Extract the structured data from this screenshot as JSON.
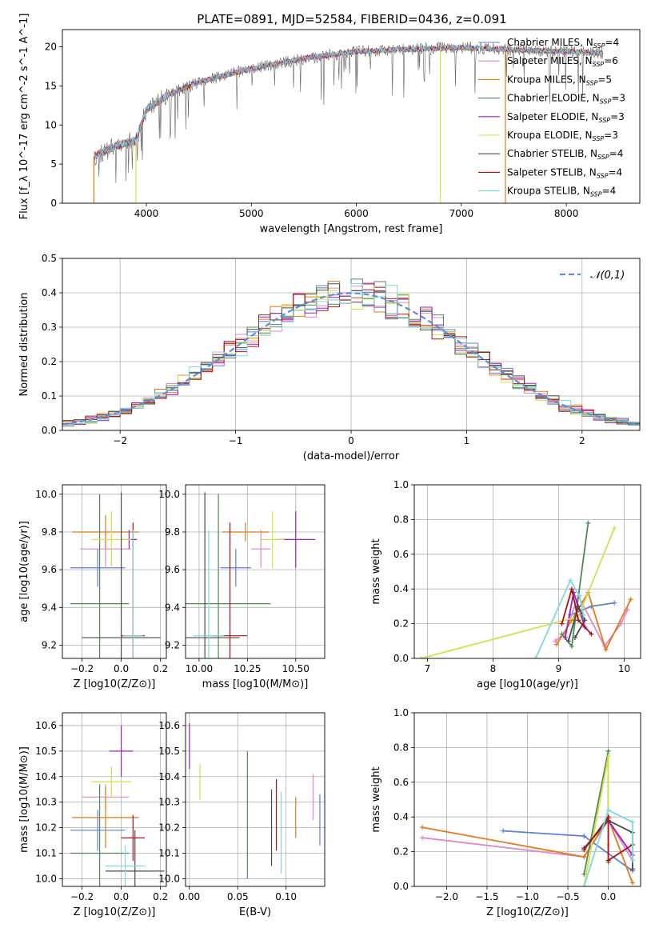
{
  "title": "PLATE=0891, MJD=52584, FIBERID=0436, z=0.091",
  "legend_labels": [
    {
      "pre": "Chabrier MILES, N",
      "sub": "SSP",
      "post": "=4",
      "color": "#5b7fdb"
    },
    {
      "pre": "Salpeter MILES, N",
      "sub": "SSP",
      "post": "=6",
      "color": "#e387c8"
    },
    {
      "pre": "Kroupa MILES, N",
      "sub": "SSP",
      "post": "=5",
      "color": "#e07b1a"
    },
    {
      "pre": "Chabrier ELODIE, N",
      "sub": "SSP",
      "post": "=3",
      "color": "#4f8a55"
    },
    {
      "pre": "Salpeter ELODIE, N",
      "sub": "SSP",
      "post": "=3",
      "color": "#9b1fbf"
    },
    {
      "pre": "Kroupa ELODIE, N",
      "sub": "SSP",
      "post": "=3",
      "color": "#d4e04a"
    },
    {
      "pre": "Chabrier STELIB, N",
      "sub": "SSP",
      "post": "=4",
      "color": "#4a4a4a"
    },
    {
      "pre": "Salpeter STELIB, N",
      "sub": "SSP",
      "post": "=4",
      "color": "#b01010"
    },
    {
      "pre": "Kroupa STELIB, N",
      "sub": "SSP",
      "post": "=4",
      "color": "#7ed9dc"
    }
  ],
  "chart_data": [
    {
      "type": "line",
      "id": "spectrum",
      "xlabel": "wavelength [Angstrom, rest frame]",
      "ylabel": "Flux [f_λ 10^-17 erg cm^-2 s^-1 A^-1]",
      "xlim": [
        3200,
        8700
      ],
      "ylim": [
        0,
        22.2
      ],
      "xticks": [
        4000,
        5000,
        6000,
        7000,
        8000
      ],
      "yticks": [
        0,
        5,
        10,
        15,
        20
      ],
      "continuum": {
        "wavelength": [
          3500,
          3700,
          3900,
          4000,
          4200,
          4500,
          5000,
          5500,
          6000,
          6500,
          7000,
          7500,
          8000,
          8350
        ],
        "flux": [
          6.0,
          7.3,
          8.0,
          12.0,
          13.8,
          15.5,
          17.2,
          18.5,
          19.4,
          19.7,
          19.9,
          19.6,
          19.4,
          19.2
        ]
      },
      "drops": [
        {
          "wavelength": 3500,
          "series": 2
        },
        {
          "wavelength": 3900,
          "series": 5
        },
        {
          "wavelength": 6800,
          "series": 5
        },
        {
          "wavelength": 7420,
          "series": 2
        }
      ]
    },
    {
      "type": "histogram",
      "id": "residuals",
      "xlabel": "(data-model)/error",
      "ylabel": "Normed distribution",
      "xlim": [
        -2.5,
        2.5
      ],
      "ylim": [
        0,
        0.5
      ],
      "xticks": [
        -2,
        -1,
        0,
        1,
        2
      ],
      "yticks": [
        0,
        0.1,
        0.2,
        0.3,
        0.4,
        0.5
      ],
      "bin_width": 0.1,
      "reference": {
        "name": "𝒩(0,1)",
        "mean": 0,
        "sigma": 1,
        "color": "#5b8fd9"
      }
    },
    {
      "type": "errorbar",
      "id": "age_vs_Z",
      "xlabel": "Z [log10(Z/Z⊙)]",
      "ylabel": "age [log10(age/yr)]",
      "xlim": [
        -0.3,
        0.23
      ],
      "ylim": [
        9.13,
        10.05
      ],
      "xticks": [
        -0.2,
        0.0,
        0.2
      ],
      "yticks": [
        9.2,
        9.4,
        9.6,
        9.8,
        10.0
      ],
      "points": [
        {
          "series": 0,
          "x": -0.12,
          "xerr": 0.14,
          "y": 9.61,
          "yerr": 0.1
        },
        {
          "series": 1,
          "x": -0.08,
          "xerr": 0.13,
          "y": 9.71,
          "yerr": 0.1
        },
        {
          "series": 2,
          "x": -0.08,
          "xerr": 0.17,
          "y": 9.8,
          "yerr": 0.09
        },
        {
          "series": 3,
          "x": -0.11,
          "xerr": 0.15,
          "y": 9.42,
          "yerr": 0.58
        },
        {
          "series": 4,
          "x": 0.04,
          "xerr": 0.04,
          "y": 9.76,
          "yerr": 0.05
        },
        {
          "series": 5,
          "x": -0.05,
          "xerr": 0.1,
          "y": 9.76,
          "yerr": 0.15
        },
        {
          "series": 6,
          "x": 0.0,
          "xerr": 0.2,
          "y": 9.24,
          "yerr": 0.77
        },
        {
          "series": 7,
          "x": 0.06,
          "xerr": 0.06,
          "y": 9.25,
          "yerr": 0.6
        },
        {
          "series": 8,
          "x": 0.06,
          "xerr": 0.05,
          "y": 9.25,
          "yerr": 0.56
        }
      ]
    },
    {
      "type": "errorbar",
      "id": "age_vs_mass",
      "xlabel": "mass [log10(M/M⊙)]",
      "ylabel": "",
      "xlim": [
        9.93,
        10.65
      ],
      "ylim": [
        9.13,
        10.05
      ],
      "xticks": [
        10.0,
        10.25,
        10.5
      ],
      "yticks": [
        9.2,
        9.4,
        9.6,
        9.8,
        10.0
      ],
      "points": [
        {
          "series": 0,
          "x": 10.19,
          "xerr": 0.08,
          "y": 9.61,
          "yerr": 0.1
        },
        {
          "series": 1,
          "x": 10.32,
          "xerr": 0.05,
          "y": 9.71,
          "yerr": 0.1
        },
        {
          "series": 2,
          "x": 10.24,
          "xerr": 0.12,
          "y": 9.8,
          "yerr": 0.05
        },
        {
          "series": 3,
          "x": 10.1,
          "xerr": 0.27,
          "y": 9.42,
          "yerr": 0.58
        },
        {
          "series": 4,
          "x": 10.5,
          "xerr": 0.1,
          "y": 9.76,
          "yerr": 0.15
        },
        {
          "series": 5,
          "x": 10.38,
          "xerr": 0.06,
          "y": 9.76,
          "yerr": 0.15
        },
        {
          "series": 6,
          "x": 10.03,
          "xerr": 0.18,
          "y": 9.24,
          "yerr": 0.77
        },
        {
          "series": 7,
          "x": 10.16,
          "xerr": 0.09,
          "y": 9.25,
          "yerr": 0.6
        },
        {
          "series": 8,
          "x": 10.05,
          "xerr": 0.08,
          "y": 9.25,
          "yerr": 0.56
        }
      ]
    },
    {
      "type": "line",
      "id": "mass_weight_vs_age",
      "xlabel": "age [log10(age/yr)]",
      "ylabel": "mass weight",
      "xlim": [
        6.8,
        10.25
      ],
      "ylim": [
        0,
        1.0
      ],
      "xticks": [
        7,
        8,
        9,
        10
      ],
      "yticks": [
        0.0,
        0.2,
        0.4,
        0.6,
        0.8,
        1.0
      ],
      "series": [
        {
          "series": 0,
          "x": [
            9.18,
            9.5,
            9.85
          ],
          "y": [
            0.25,
            0.3,
            0.32
          ]
        },
        {
          "series": 1,
          "x": [
            8.95,
            9.1,
            9.3,
            9.7,
            9.95,
            10.05
          ],
          "y": [
            0.1,
            0.15,
            0.36,
            0.07,
            0.2,
            0.28
          ]
        },
        {
          "series": 2,
          "x": [
            8.97,
            9.2,
            9.45,
            9.72,
            10.1
          ],
          "y": [
            0.08,
            0.22,
            0.38,
            0.05,
            0.34
          ]
        },
        {
          "series": 3,
          "x": [
            9.05,
            9.2,
            9.45
          ],
          "y": [
            0.14,
            0.07,
            0.78
          ]
        },
        {
          "series": 4,
          "x": [
            9.1,
            9.23,
            9.4
          ],
          "y": [
            0.12,
            0.38,
            0.18
          ]
        },
        {
          "series": 5,
          "x": [
            6.9,
            9.3,
            9.85
          ],
          "y": [
            0.0,
            0.24,
            0.75
          ]
        },
        {
          "series": 6,
          "x": [
            9.15,
            9.3,
            9.4,
            9.25
          ],
          "y": [
            0.1,
            0.3,
            0.22,
            0.12
          ]
        },
        {
          "series": 7,
          "x": [
            9.05,
            9.2,
            9.3,
            9.5
          ],
          "y": [
            0.2,
            0.4,
            0.22,
            0.14
          ]
        },
        {
          "series": 8,
          "x": [
            8.65,
            9.18,
            9.32,
            9.38
          ],
          "y": [
            0.0,
            0.45,
            0.36,
            0.25
          ]
        }
      ]
    },
    {
      "type": "errorbar",
      "id": "mass_vs_Z",
      "xlabel": "Z [log10(Z/Z⊙)]",
      "ylabel": "mass [log10(M/M⊙)]",
      "xlim": [
        -0.3,
        0.23
      ],
      "ylim": [
        9.97,
        10.65
      ],
      "xticks": [
        -0.2,
        0.0,
        0.2
      ],
      "yticks": [
        10.0,
        10.1,
        10.2,
        10.3,
        10.4,
        10.5,
        10.6
      ],
      "points": [
        {
          "series": 0,
          "x": -0.12,
          "xerr": 0.14,
          "y": 10.19,
          "yerr": 0.08
        },
        {
          "series": 1,
          "x": -0.08,
          "xerr": 0.12,
          "y": 10.32,
          "yerr": 0.05
        },
        {
          "series": 2,
          "x": -0.08,
          "xerr": 0.17,
          "y": 10.24,
          "yerr": 0.12
        },
        {
          "series": 3,
          "x": -0.11,
          "xerr": 0.15,
          "y": 10.1,
          "yerr": 0.27
        },
        {
          "series": 4,
          "x": 0.0,
          "xerr": 0.06,
          "y": 10.5,
          "yerr": 0.1
        },
        {
          "series": 5,
          "x": -0.05,
          "xerr": 0.1,
          "y": 10.38,
          "yerr": 0.06
        },
        {
          "series": 6,
          "x": 0.07,
          "xerr": 0.15,
          "y": 10.03,
          "yerr": 0.16
        },
        {
          "series": 7,
          "x": 0.06,
          "xerr": 0.06,
          "y": 10.16,
          "yerr": 0.09
        },
        {
          "series": 8,
          "x": 0.02,
          "xerr": 0.1,
          "y": 10.05,
          "yerr": 0.08
        }
      ]
    },
    {
      "type": "errorbar",
      "id": "mass_vs_ebv",
      "xlabel": "E(B-V)",
      "ylabel": "",
      "xlim": [
        -0.004,
        0.14
      ],
      "ylim": [
        9.97,
        10.65
      ],
      "xticks": [
        0.0,
        0.05,
        0.1
      ],
      "yticks": [
        10.0,
        10.1,
        10.2,
        10.3,
        10.4,
        10.5,
        10.6
      ],
      "points": [
        {
          "series": 0,
          "x": 0.135,
          "y": 10.23,
          "yerr": 0.1
        },
        {
          "series": 1,
          "x": 0.128,
          "y": 10.32,
          "yerr": 0.09
        },
        {
          "series": 2,
          "x": 0.11,
          "y": 10.24,
          "yerr": 0.08
        },
        {
          "series": 3,
          "x": 0.06,
          "y": 10.25,
          "yerr": 0.25
        },
        {
          "series": 4,
          "x": 0.0,
          "y": 10.52,
          "yerr": 0.09
        },
        {
          "series": 5,
          "x": 0.011,
          "y": 10.38,
          "yerr": 0.07
        },
        {
          "series": 6,
          "x": 0.085,
          "y": 10.2,
          "yerr": 0.15
        },
        {
          "series": 7,
          "x": 0.09,
          "y": 10.25,
          "yerr": 0.14
        },
        {
          "series": 8,
          "x": 0.095,
          "y": 10.18,
          "yerr": 0.16
        }
      ]
    },
    {
      "type": "line",
      "id": "mass_weight_vs_Z",
      "xlabel": "Z [log10(Z/Z⊙)]",
      "ylabel": "mass weight",
      "xlim": [
        -2.4,
        0.4
      ],
      "ylim": [
        0,
        1.0
      ],
      "xticks": [
        -2.0,
        -1.5,
        -1.0,
        -0.5,
        0.0
      ],
      "yticks": [
        0.0,
        0.2,
        0.4,
        0.6,
        0.8,
        1.0
      ],
      "series": [
        {
          "series": 0,
          "x": [
            -1.3,
            -0.3,
            0.3
          ],
          "y": [
            0.32,
            0.29,
            0.09
          ]
        },
        {
          "series": 1,
          "x": [
            -2.3,
            -0.3,
            0.0,
            0.3
          ],
          "y": [
            0.28,
            0.17,
            0.38,
            0.15
          ]
        },
        {
          "series": 2,
          "x": [
            -2.3,
            -0.3,
            0.0,
            0.3
          ],
          "y": [
            0.34,
            0.17,
            0.39,
            0.02
          ]
        },
        {
          "series": 3,
          "x": [
            -0.3,
            0.0,
            0.0
          ],
          "y": [
            0.07,
            0.78,
            0.14
          ]
        },
        {
          "series": 4,
          "x": [
            -0.3,
            0.0,
            0.3
          ],
          "y": [
            0.22,
            0.38,
            0.18
          ]
        },
        {
          "series": 5,
          "x": [
            -0.3,
            0.0,
            0.0
          ],
          "y": [
            0.0,
            0.75,
            0.24
          ]
        },
        {
          "series": 6,
          "x": [
            -0.3,
            0.0,
            0.3,
            0.3
          ],
          "y": [
            0.22,
            0.38,
            0.31,
            0.1
          ]
        },
        {
          "series": 7,
          "x": [
            -0.3,
            0.0,
            0.0,
            0.3
          ],
          "y": [
            0.21,
            0.4,
            0.15,
            0.24
          ]
        },
        {
          "series": 8,
          "x": [
            -0.3,
            0.0,
            0.3,
            0.3
          ],
          "y": [
            0.0,
            0.44,
            0.37,
            0.15
          ]
        }
      ]
    }
  ]
}
